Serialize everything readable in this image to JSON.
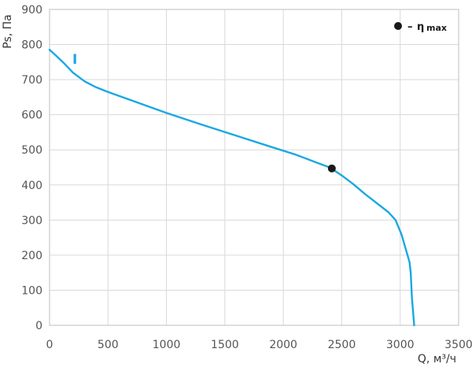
{
  "chart_data": {
    "type": "line",
    "xlabel": "Q, м³/ч",
    "ylabel": "Ps, Па",
    "xlim": [
      0,
      3500
    ],
    "ylim": [
      0,
      900
    ],
    "x_ticks": [
      "0",
      "500",
      "1000",
      "1500",
      "2000",
      "2500",
      "3000",
      "3500"
    ],
    "y_ticks": [
      "0",
      "100",
      "200",
      "300",
      "400",
      "500",
      "600",
      "700",
      "800",
      "900"
    ],
    "grid": true,
    "series": [
      {
        "name": "I",
        "color": "#1aa8e2",
        "points": [
          [
            0,
            785
          ],
          [
            50,
            770
          ],
          [
            120,
            748
          ],
          [
            200,
            720
          ],
          [
            300,
            695
          ],
          [
            400,
            678
          ],
          [
            500,
            665
          ],
          [
            700,
            641
          ],
          [
            1000,
            605
          ],
          [
            1300,
            572
          ],
          [
            1600,
            540
          ],
          [
            1900,
            508
          ],
          [
            2100,
            487
          ],
          [
            2300,
            462
          ],
          [
            2380,
            452
          ],
          [
            2420,
            445
          ],
          [
            2500,
            427
          ],
          [
            2600,
            402
          ],
          [
            2700,
            374
          ],
          [
            2800,
            348
          ],
          [
            2900,
            322
          ],
          [
            2960,
            300
          ],
          [
            3010,
            260
          ],
          [
            3050,
            215
          ],
          [
            3080,
            180
          ],
          [
            3090,
            150
          ],
          [
            3100,
            80
          ],
          [
            3120,
            0
          ]
        ]
      }
    ],
    "eta_max_point": {
      "x": 2415,
      "y": 447
    },
    "legend": {
      "dash": "–",
      "symbol": "η",
      "subscript": "max"
    }
  }
}
